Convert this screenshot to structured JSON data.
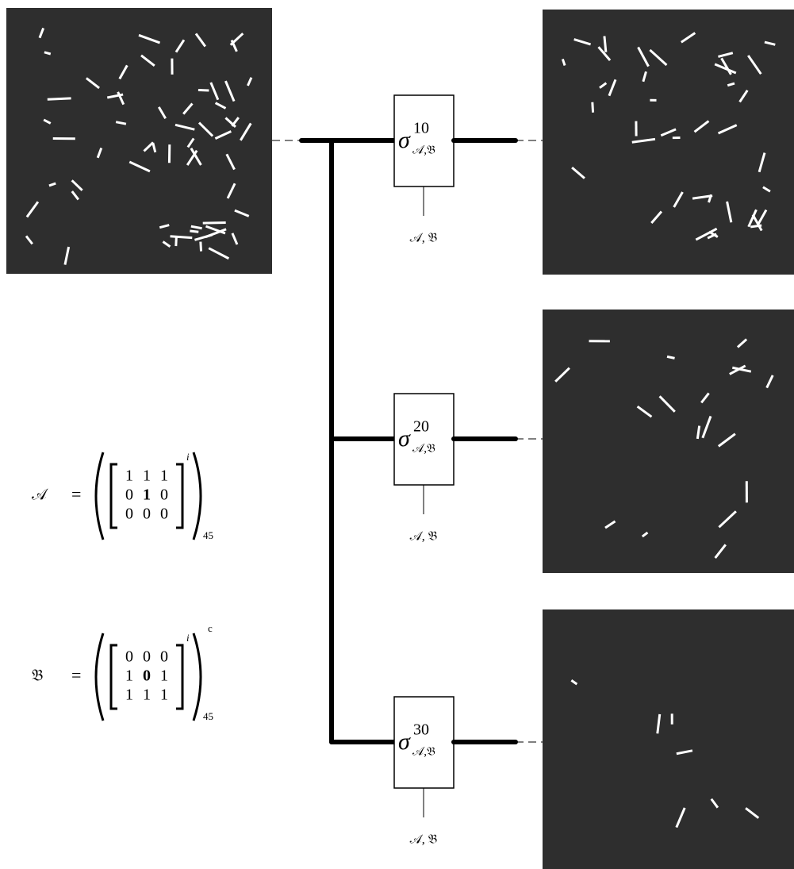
{
  "operators": [
    {
      "symbol": "σ",
      "superscript": "10",
      "subscript": "𝒜,𝔅",
      "parameter_label": "𝒜, 𝔅"
    },
    {
      "symbol": "σ",
      "superscript": "20",
      "subscript": "𝒜,𝔅",
      "parameter_label": "𝒜, 𝔅"
    },
    {
      "symbol": "σ",
      "superscript": "30",
      "subscript": "𝒜,𝔅",
      "parameter_label": "𝒜, 𝔅"
    }
  ],
  "definitions": [
    {
      "name": "𝒜",
      "equals": "=",
      "matrix": [
        [
          1,
          1,
          1
        ],
        [
          0,
          1,
          0
        ],
        [
          0,
          0,
          0
        ]
      ],
      "inner_superscript": "i",
      "outer_subscript": "45"
    },
    {
      "name": "𝔅",
      "equals": "=",
      "matrix": [
        [
          0,
          0,
          0
        ],
        [
          1,
          0,
          1
        ],
        [
          1,
          1,
          1
        ]
      ],
      "inner_superscript": "i",
      "outer_superscript": "c",
      "outer_subscript": "45"
    }
  ]
}
